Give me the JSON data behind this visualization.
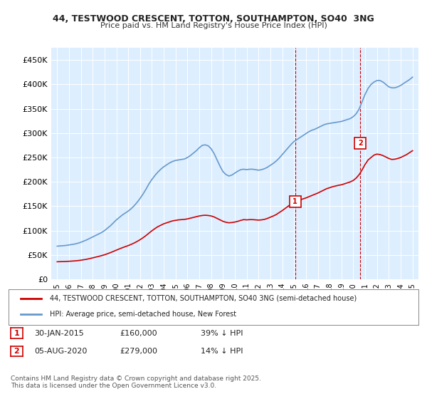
{
  "title1": "44, TESTWOOD CRESCENT, TOTTON, SOUTHAMPTON, SO40  3NG",
  "title2": "Price paid vs. HM Land Registry's House Price Index (HPI)",
  "bg_color": "#ddeeff",
  "plot_bg": "#ddeeff",
  "ylabel_color": "#333333",
  "hpi_color": "#6699cc",
  "price_color": "#cc0000",
  "marker1_date": 2015.08,
  "marker1_price": 160000,
  "marker1_label": "1",
  "marker2_date": 2020.6,
  "marker2_price": 279000,
  "marker2_label": "2",
  "legend_entry1": "44, TESTWOOD CRESCENT, TOTTON, SOUTHAMPTON, SO40 3NG (semi-detached house)",
  "legend_entry2": "HPI: Average price, semi-detached house, New Forest",
  "table_row1": "1    30-JAN-2015    £160,000    39% ↓ HPI",
  "table_row2": "2    05-AUG-2020    £279,000    14% ↓ HPI",
  "footer": "Contains HM Land Registry data © Crown copyright and database right 2025.\nThis data is licensed under the Open Government Licence v3.0.",
  "ylim_max": 475000,
  "xlim_min": 1994.5,
  "xlim_max": 2025.5,
  "hpi_years": [
    1995.0,
    1995.25,
    1995.5,
    1995.75,
    1996.0,
    1996.25,
    1996.5,
    1996.75,
    1997.0,
    1997.25,
    1997.5,
    1997.75,
    1998.0,
    1998.25,
    1998.5,
    1998.75,
    1999.0,
    1999.25,
    1999.5,
    1999.75,
    2000.0,
    2000.25,
    2000.5,
    2000.75,
    2001.0,
    2001.25,
    2001.5,
    2001.75,
    2002.0,
    2002.25,
    2002.5,
    2002.75,
    2003.0,
    2003.25,
    2003.5,
    2003.75,
    2004.0,
    2004.25,
    2004.5,
    2004.75,
    2005.0,
    2005.25,
    2005.5,
    2005.75,
    2006.0,
    2006.25,
    2006.5,
    2006.75,
    2007.0,
    2007.25,
    2007.5,
    2007.75,
    2008.0,
    2008.25,
    2008.5,
    2008.75,
    2009.0,
    2009.25,
    2009.5,
    2009.75,
    2010.0,
    2010.25,
    2010.5,
    2010.75,
    2011.0,
    2011.25,
    2011.5,
    2011.75,
    2012.0,
    2012.25,
    2012.5,
    2012.75,
    2013.0,
    2013.25,
    2013.5,
    2013.75,
    2014.0,
    2014.25,
    2014.5,
    2014.75,
    2015.0,
    2015.25,
    2015.5,
    2015.75,
    2016.0,
    2016.25,
    2016.5,
    2016.75,
    2017.0,
    2017.25,
    2017.5,
    2017.75,
    2018.0,
    2018.25,
    2018.5,
    2018.75,
    2019.0,
    2019.25,
    2019.5,
    2019.75,
    2020.0,
    2020.25,
    2020.5,
    2020.75,
    2021.0,
    2021.25,
    2021.5,
    2021.75,
    2022.0,
    2022.25,
    2022.5,
    2022.75,
    2023.0,
    2023.25,
    2023.5,
    2023.75,
    2024.0,
    2024.25,
    2024.5,
    2024.75,
    2025.0
  ],
  "hpi_values": [
    68000,
    68500,
    69000,
    69500,
    70500,
    71500,
    72500,
    74000,
    76000,
    78500,
    81000,
    84000,
    87000,
    90000,
    93000,
    96000,
    100000,
    105000,
    110000,
    116000,
    122000,
    127000,
    132000,
    136000,
    140000,
    145000,
    151000,
    158000,
    166000,
    175000,
    185000,
    196000,
    205000,
    213000,
    220000,
    226000,
    231000,
    235000,
    239000,
    242000,
    244000,
    245000,
    246000,
    247000,
    250000,
    254000,
    259000,
    264000,
    270000,
    275000,
    276000,
    274000,
    268000,
    258000,
    245000,
    232000,
    221000,
    215000,
    212000,
    214000,
    218000,
    222000,
    225000,
    226000,
    225000,
    226000,
    226000,
    225000,
    224000,
    225000,
    227000,
    230000,
    234000,
    238000,
    243000,
    249000,
    256000,
    263000,
    270000,
    277000,
    283000,
    287000,
    291000,
    295000,
    299000,
    303000,
    306000,
    308000,
    311000,
    314000,
    317000,
    319000,
    320000,
    321000,
    322000,
    323000,
    324000,
    326000,
    328000,
    330000,
    334000,
    340000,
    350000,
    365000,
    380000,
    392000,
    400000,
    405000,
    408000,
    408000,
    405000,
    400000,
    395000,
    393000,
    393000,
    395000,
    398000,
    402000,
    406000,
    410000,
    415000
  ],
  "price_years": [
    1995.0,
    1995.25,
    1995.5,
    1995.75,
    1996.0,
    1996.25,
    1996.5,
    1996.75,
    1997.0,
    1997.25,
    1997.5,
    1997.75,
    1998.0,
    1998.25,
    1998.5,
    1998.75,
    1999.0,
    1999.25,
    1999.5,
    1999.75,
    2000.0,
    2000.25,
    2000.5,
    2000.75,
    2001.0,
    2001.25,
    2001.5,
    2001.75,
    2002.0,
    2002.25,
    2002.5,
    2002.75,
    2003.0,
    2003.25,
    2003.5,
    2003.75,
    2004.0,
    2004.25,
    2004.5,
    2004.75,
    2005.0,
    2005.25,
    2005.5,
    2005.75,
    2006.0,
    2006.25,
    2006.5,
    2006.75,
    2007.0,
    2007.25,
    2007.5,
    2007.75,
    2008.0,
    2008.25,
    2008.5,
    2008.75,
    2009.0,
    2009.25,
    2009.5,
    2009.75,
    2010.0,
    2010.25,
    2010.5,
    2010.75,
    2011.0,
    2011.25,
    2011.5,
    2011.75,
    2012.0,
    2012.25,
    2012.5,
    2012.75,
    2013.0,
    2013.25,
    2013.5,
    2013.75,
    2014.0,
    2014.25,
    2014.5,
    2014.75,
    2015.0,
    2015.25,
    2015.5,
    2015.75,
    2016.0,
    2016.25,
    2016.5,
    2016.75,
    2017.0,
    2017.25,
    2017.5,
    2017.75,
    2018.0,
    2018.25,
    2018.5,
    2018.75,
    2019.0,
    2019.25,
    2019.5,
    2019.75,
    2020.0,
    2020.25,
    2020.5,
    2020.75,
    2021.0,
    2021.25,
    2021.5,
    2021.75,
    2022.0,
    2022.25,
    2022.5,
    2022.75,
    2023.0,
    2023.25,
    2023.5,
    2023.75,
    2024.0,
    2024.25,
    2024.5,
    2024.75,
    2025.0
  ],
  "price_values": [
    36000,
    36200,
    36400,
    36600,
    37000,
    37400,
    37800,
    38400,
    39200,
    40200,
    41200,
    42500,
    44000,
    45500,
    47000,
    48600,
    50400,
    52500,
    54800,
    57300,
    59900,
    62400,
    64800,
    67000,
    69200,
    71700,
    74500,
    77700,
    81300,
    85300,
    89800,
    94800,
    99700,
    104000,
    108000,
    111000,
    114000,
    116000,
    118000,
    120000,
    121000,
    122000,
    122500,
    123000,
    124000,
    125500,
    127000,
    128500,
    130000,
    131000,
    131500,
    131000,
    130000,
    128000,
    125000,
    122000,
    119000,
    117000,
    116000,
    116500,
    117500,
    119000,
    121000,
    122500,
    122000,
    122500,
    122500,
    122000,
    121500,
    122000,
    123000,
    125000,
    127500,
    130000,
    133000,
    137000,
    141000,
    145500,
    150000,
    154500,
    158000,
    161000,
    163000,
    165000,
    167000,
    169500,
    172000,
    174500,
    177000,
    180000,
    183000,
    186000,
    188000,
    190000,
    191500,
    193000,
    194000,
    196000,
    198000,
    200000,
    203000,
    208000,
    215000,
    225000,
    236000,
    245000,
    250000,
    255000,
    257000,
    256000,
    254000,
    251000,
    248000,
    246000,
    246500,
    248000,
    250000,
    253000,
    256000,
    260000,
    264000
  ],
  "yticks": [
    0,
    50000,
    100000,
    150000,
    200000,
    250000,
    300000,
    350000,
    400000,
    450000
  ],
  "ytick_labels": [
    "£0",
    "£50K",
    "£100K",
    "£150K",
    "£200K",
    "£250K",
    "£300K",
    "£350K",
    "£400K",
    "£450K"
  ],
  "xticks": [
    1995,
    1996,
    1997,
    1998,
    1999,
    2000,
    2001,
    2002,
    2003,
    2004,
    2005,
    2006,
    2007,
    2008,
    2009,
    2010,
    2011,
    2012,
    2013,
    2014,
    2015,
    2016,
    2017,
    2018,
    2019,
    2020,
    2021,
    2022,
    2023,
    2024,
    2025
  ]
}
